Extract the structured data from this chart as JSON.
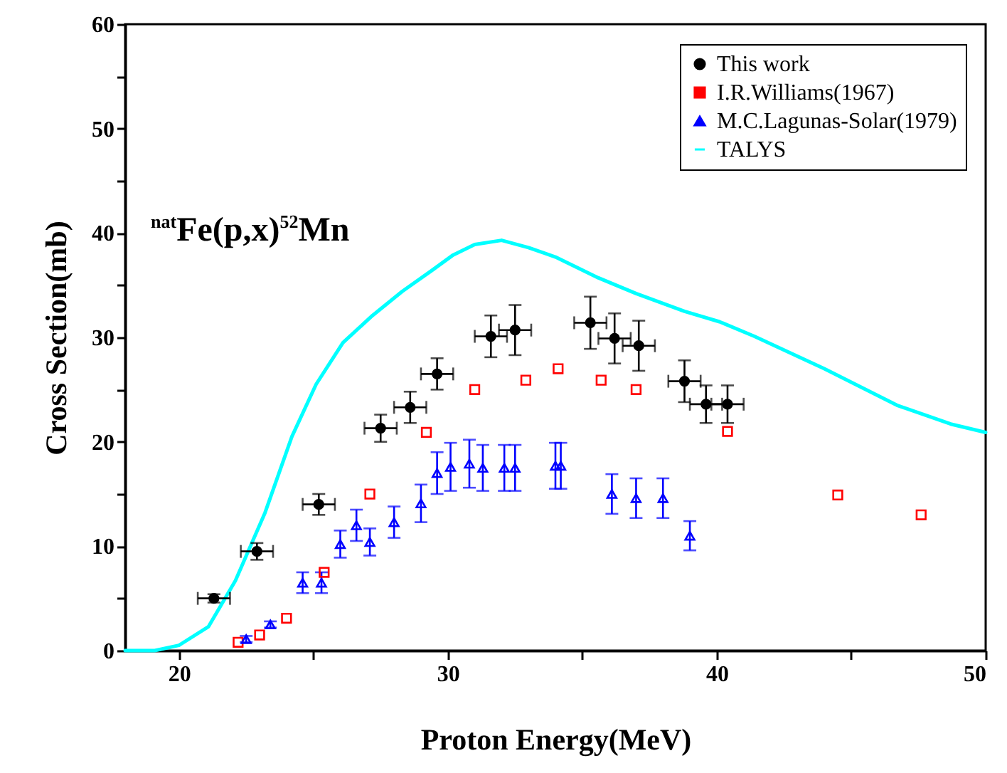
{
  "chart_data": {
    "type": "scatter",
    "xlabel": "Proton Energy(MeV)",
    "ylabel": "Cross Section(mb)",
    "annotations": [
      "$^{nat}$Fe(p,x)$^{52}$Mn"
    ],
    "xlim": [
      18,
      50
    ],
    "ylim": [
      0,
      60
    ],
    "xticks": [
      20,
      {
        "value": 25,
        "label": null
      },
      30,
      {
        "value": 35,
        "label": null
      },
      40,
      {
        "value": 45,
        "label": null
      },
      50
    ],
    "yticks": [
      0,
      {
        "value": 5,
        "label": null
      },
      10,
      {
        "value": 15,
        "label": null
      },
      20,
      {
        "value": 25,
        "label": null
      },
      30,
      {
        "value": 35,
        "label": null
      },
      40,
      {
        "value": 45,
        "label": null
      },
      50,
      {
        "value": 55,
        "label": null
      },
      60
    ],
    "legend": "top right",
    "grid": false,
    "series": [
      {
        "name": "This work",
        "type": "scatter",
        "marker": "circle",
        "color": "#000000",
        "x": [
          21.3,
          22.9,
          25.2,
          27.5,
          28.6,
          29.6,
          31.6,
          32.5,
          35.3,
          36.2,
          37.1,
          38.8,
          39.6,
          40.4
        ],
        "values": [
          5.0,
          9.5,
          14.0,
          21.3,
          23.3,
          26.5,
          30.1,
          30.7,
          31.4,
          29.9,
          29.2,
          25.8,
          23.6,
          23.6
        ],
        "errors": [
          0.4,
          0.8,
          1.0,
          1.3,
          1.5,
          1.5,
          2.0,
          2.4,
          2.5,
          2.4,
          2.4,
          2.0,
          1.8,
          1.8
        ],
        "xerrors": [
          0.6,
          0.6,
          0.6,
          0.6,
          0.6,
          0.6,
          0.6,
          0.6,
          0.6,
          0.6,
          0.6,
          0.6,
          0.6,
          0.6
        ]
      },
      {
        "name": "I.R.Williams(1967)",
        "type": "scatter",
        "marker": "square",
        "color": "#ff0000",
        "x": [
          22.2,
          23.0,
          24.0,
          25.4,
          27.1,
          29.2,
          31.0,
          32.9,
          34.1,
          35.7,
          37.0,
          40.4,
          44.5,
          47.6
        ],
        "values": [
          0.8,
          1.5,
          3.1,
          7.5,
          15.0,
          20.9,
          25.0,
          25.9,
          27.0,
          25.9,
          25.0,
          21.0,
          14.9,
          13.0
        ]
      },
      {
        "name": "M.C.Lagunas-Solar(1979)",
        "type": "scatter",
        "marker": "triangle",
        "color": "#0000ff",
        "x": [
          22.5,
          23.4,
          24.6,
          25.3,
          26.0,
          26.6,
          27.1,
          28.0,
          29.0,
          29.6,
          30.1,
          30.8,
          31.3,
          32.1,
          32.5,
          34.0,
          34.2,
          36.1,
          37.0,
          38.0,
          39.0
        ],
        "values": [
          1.1,
          2.5,
          6.5,
          6.5,
          10.2,
          12.0,
          10.4,
          12.3,
          14.1,
          17.0,
          17.6,
          17.9,
          17.5,
          17.5,
          17.5,
          17.7,
          17.7,
          15.0,
          14.6,
          14.6,
          11.0
        ],
        "errors": [
          0.3,
          0.3,
          1.0,
          1.0,
          1.3,
          1.5,
          1.3,
          1.5,
          1.8,
          2.0,
          2.3,
          2.3,
          2.2,
          2.2,
          2.2,
          2.2,
          2.2,
          1.9,
          1.9,
          1.9,
          1.4
        ]
      },
      {
        "name": "TALYS",
        "type": "line",
        "marker": "none",
        "line_style": "solid",
        "color": "#00ffff",
        "x": [
          18,
          19.1,
          20,
          21.1,
          22.1,
          23.2,
          24.2,
          25.1,
          26.1,
          27.2,
          28.3,
          29.4,
          30.2,
          31.0,
          32.0,
          33.0,
          34.0,
          35.6,
          37.0,
          38.8,
          40.1,
          41.4,
          44.0,
          46.7,
          48.7,
          50
        ],
        "values": [
          0,
          0,
          0.5,
          2.3,
          6.7,
          13.2,
          20.5,
          25.5,
          29.5,
          32.1,
          34.4,
          36.4,
          37.9,
          38.9,
          39.3,
          38.6,
          37.7,
          35.7,
          34.2,
          32.5,
          31.5,
          30.1,
          27.0,
          23.5,
          21.7,
          20.9
        ]
      }
    ]
  }
}
